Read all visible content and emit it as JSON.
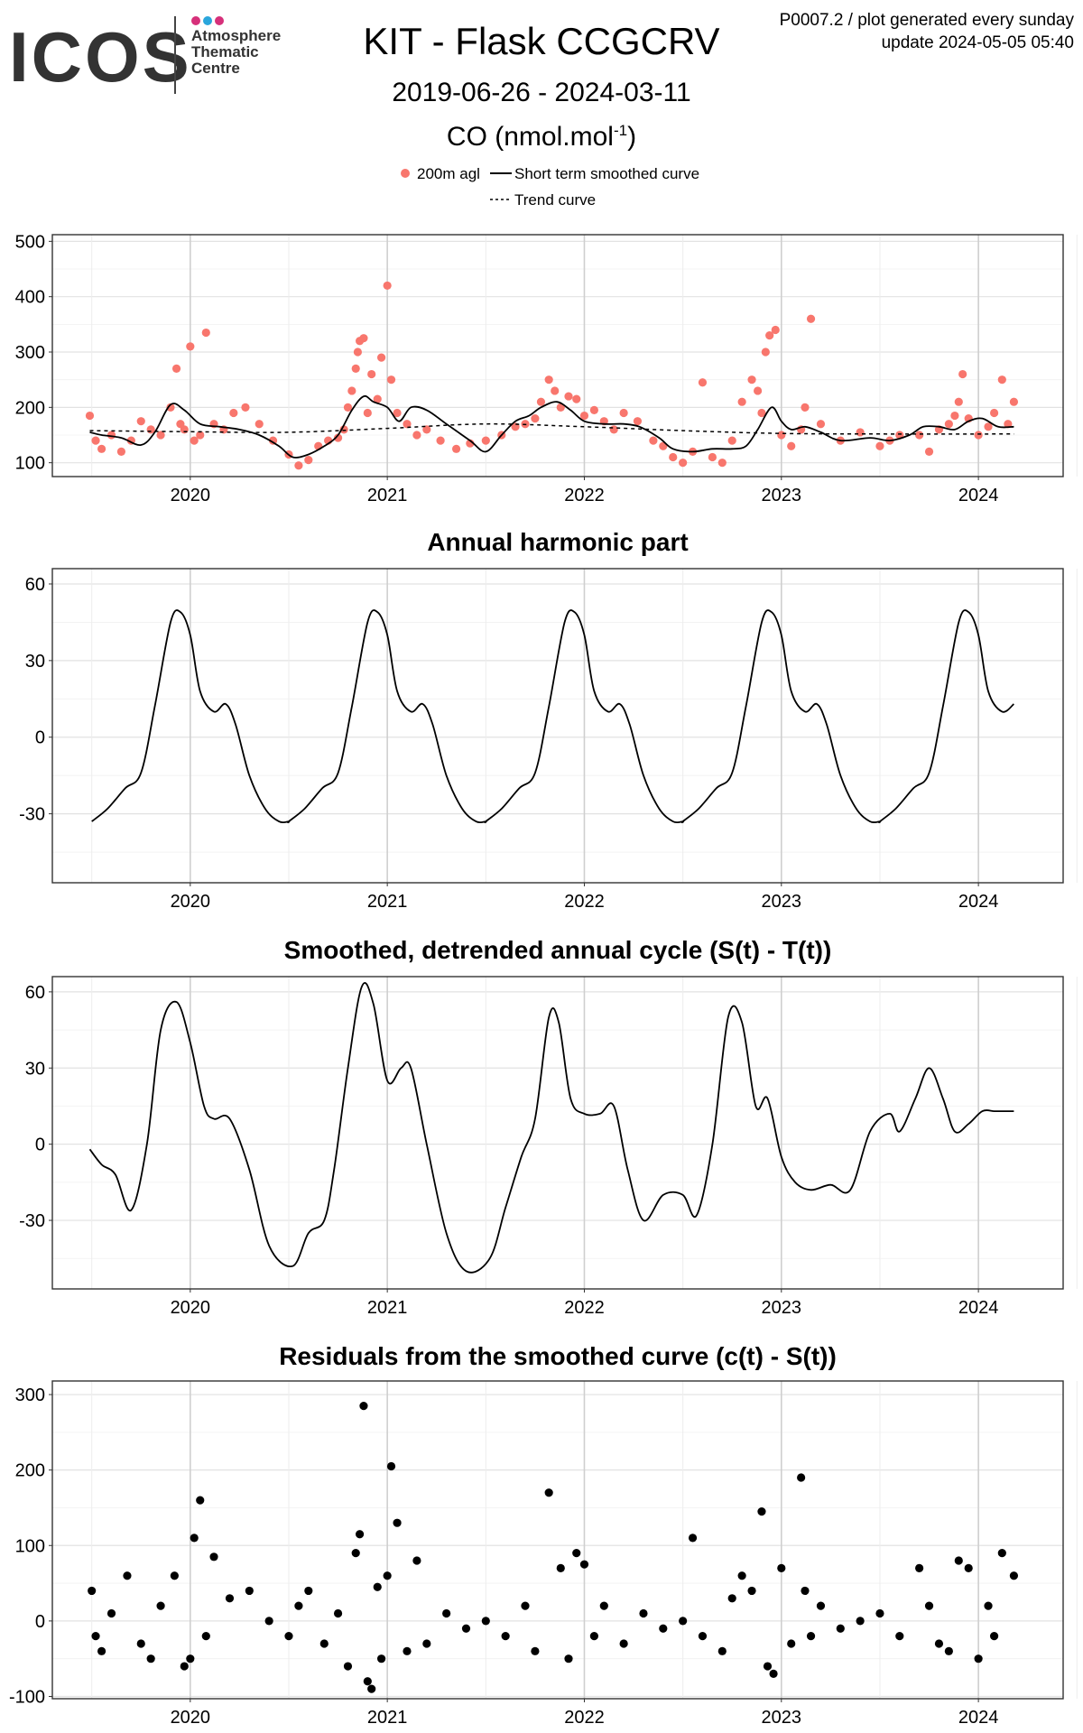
{
  "header": {
    "logo_text": "ICOS",
    "logo_lines": [
      "Atmosphere",
      "Thematic",
      "Centre"
    ],
    "logo_dot_colors": [
      "#d6307a",
      "#2aa6dc",
      "#d6307a"
    ],
    "title": "KIT - Flask CCGCRV",
    "date_range": "2019-06-26 - 2024-03-11",
    "species_main": "CO (nmol.mol",
    "species_sup": "-1",
    "species_close": ")",
    "meta_line1": "P0007.2 / plot generated every sunday",
    "meta_line2": "update  2024-05-05 05:40"
  },
  "legend": {
    "points_label": "200m agl",
    "smooth_label": "Short term smoothed curve",
    "trend_label": "Trend curve",
    "point_color": "#f8766d"
  },
  "chart_data": [
    {
      "type": "scatter",
      "title": "",
      "xlabel": "",
      "ylabel": "",
      "xticks": [
        "2020",
        "2021",
        "2022",
        "2023",
        "2024"
      ],
      "yticks": [
        100,
        200,
        300,
        400,
        500
      ],
      "xlim": [
        2019.3,
        2024.43
      ],
      "ylim": [
        75,
        512
      ],
      "grid": true,
      "series": [
        {
          "name": "200m agl",
          "kind": "points",
          "color": "#f8766d",
          "x": [
            2019.49,
            2019.52,
            2019.55,
            2019.6,
            2019.65,
            2019.7,
            2019.75,
            2019.8,
            2019.85,
            2019.9,
            2019.93,
            2019.95,
            2019.97,
            2020.0,
            2020.02,
            2020.05,
            2020.08,
            2020.12,
            2020.17,
            2020.22,
            2020.28,
            2020.35,
            2020.42,
            2020.5,
            2020.55,
            2020.6,
            2020.65,
            2020.7,
            2020.75,
            2020.78,
            2020.8,
            2020.82,
            2020.84,
            2020.85,
            2020.86,
            2020.88,
            2020.9,
            2020.92,
            2020.95,
            2020.97,
            2021.0,
            2021.02,
            2021.05,
            2021.1,
            2021.15,
            2021.2,
            2021.27,
            2021.35,
            2021.42,
            2021.5,
            2021.58,
            2021.65,
            2021.7,
            2021.75,
            2021.78,
            2021.82,
            2021.85,
            2021.88,
            2021.92,
            2021.96,
            2022.0,
            2022.05,
            2022.1,
            2022.15,
            2022.2,
            2022.27,
            2022.35,
            2022.4,
            2022.45,
            2022.5,
            2022.55,
            2022.6,
            2022.65,
            2022.7,
            2022.75,
            2022.8,
            2022.85,
            2022.88,
            2022.9,
            2022.92,
            2022.94,
            2022.97,
            2023.0,
            2023.05,
            2023.1,
            2023.12,
            2023.15,
            2023.2,
            2023.3,
            2023.4,
            2023.5,
            2023.55,
            2023.6,
            2023.7,
            2023.75,
            2023.8,
            2023.85,
            2023.88,
            2023.9,
            2023.92,
            2023.95,
            2024.0,
            2024.05,
            2024.08,
            2024.12,
            2024.15,
            2024.18
          ],
          "y": [
            185,
            140,
            125,
            150,
            120,
            140,
            175,
            160,
            150,
            200,
            270,
            170,
            160,
            310,
            140,
            150,
            335,
            170,
            160,
            190,
            200,
            170,
            140,
            115,
            95,
            105,
            130,
            140,
            145,
            160,
            200,
            230,
            270,
            300,
            320,
            325,
            190,
            260,
            215,
            290,
            420,
            250,
            190,
            170,
            150,
            160,
            140,
            125,
            135,
            140,
            150,
            165,
            170,
            180,
            210,
            250,
            230,
            200,
            220,
            215,
            185,
            195,
            175,
            160,
            190,
            175,
            140,
            130,
            110,
            100,
            120,
            245,
            110,
            100,
            140,
            210,
            250,
            230,
            190,
            300,
            330,
            340,
            150,
            130,
            160,
            200,
            360,
            170,
            140,
            155,
            130,
            140,
            150,
            150,
            120,
            160,
            170,
            185,
            210,
            260,
            180,
            150,
            165,
            190,
            250,
            170,
            210
          ]
        },
        {
          "name": "Short term smoothed curve",
          "kind": "line",
          "x": [
            2019.49,
            2019.55,
            2019.65,
            2019.75,
            2019.82,
            2019.9,
            2019.97,
            2020.05,
            2020.15,
            2020.25,
            2020.35,
            2020.45,
            2020.52,
            2020.6,
            2020.68,
            2020.75,
            2020.82,
            2020.88,
            2020.93,
            2021.0,
            2021.06,
            2021.12,
            2021.2,
            2021.3,
            2021.42,
            2021.5,
            2021.58,
            2021.65,
            2021.72,
            2021.78,
            2021.86,
            2021.93,
            2022.0,
            2022.1,
            2022.2,
            2022.28,
            2022.38,
            2022.45,
            2022.55,
            2022.65,
            2022.75,
            2022.82,
            2022.88,
            2022.95,
            2023.0,
            2023.05,
            2023.12,
            2023.2,
            2023.3,
            2023.45,
            2023.55,
            2023.65,
            2023.72,
            2023.8,
            2023.88,
            2023.95,
            2024.02,
            2024.1,
            2024.18
          ],
          "y": [
            155,
            150,
            145,
            132,
            155,
            205,
            195,
            170,
            165,
            160,
            150,
            130,
            110,
            115,
            130,
            150,
            195,
            220,
            210,
            200,
            175,
            200,
            195,
            170,
            140,
            120,
            150,
            175,
            185,
            200,
            210,
            195,
            175,
            170,
            170,
            165,
            145,
            125,
            120,
            125,
            125,
            130,
            160,
            200,
            175,
            160,
            165,
            155,
            140,
            145,
            140,
            150,
            165,
            165,
            160,
            175,
            180,
            165,
            165
          ]
        },
        {
          "name": "Trend curve",
          "kind": "dashed",
          "x": [
            2019.49,
            2020.0,
            2020.5,
            2021.0,
            2021.5,
            2022.0,
            2022.5,
            2023.0,
            2023.5,
            2024.18
          ],
          "y": [
            158,
            156,
            155,
            162,
            170,
            165,
            158,
            153,
            152,
            152
          ]
        }
      ]
    },
    {
      "type": "line",
      "title": "Annual harmonic part",
      "xlabel": "",
      "ylabel": "",
      "xticks": [
        "2020",
        "2021",
        "2022",
        "2023",
        "2024"
      ],
      "yticks": [
        -30,
        0,
        30,
        60
      ],
      "xlim": [
        2019.3,
        2024.43
      ],
      "ylim": [
        -57,
        66
      ],
      "grid": true,
      "series": [
        {
          "name": "",
          "kind": "line",
          "x": [
            0.5,
            0.58,
            0.67,
            0.75,
            0.82,
            0.9,
            0.95,
            1.0,
            1.05,
            1.12,
            1.18,
            1.23,
            1.3,
            1.38,
            1.45,
            1.5
          ],
          "y": [
            -33,
            -28,
            -20,
            -14,
            12,
            45,
            49,
            40,
            18,
            10,
            13,
            5,
            -15,
            -28,
            -33,
            -33
          ],
          "period": 1.0,
          "x_start": 2019.49,
          "x_end": 2024.18
        }
      ]
    },
    {
      "type": "line",
      "title": "Smoothed, detrended annual cycle (S(t) - T(t))",
      "xlabel": "",
      "ylabel": "",
      "xticks": [
        "2020",
        "2021",
        "2022",
        "2023",
        "2024"
      ],
      "yticks": [
        -30,
        0,
        30,
        60
      ],
      "xlim": [
        2019.3,
        2024.43
      ],
      "ylim": [
        -57,
        66
      ],
      "grid": true,
      "series": [
        {
          "name": "",
          "kind": "line",
          "x": [
            2019.49,
            2019.55,
            2019.62,
            2019.7,
            2019.78,
            2019.85,
            2019.93,
            2020.0,
            2020.07,
            2020.12,
            2020.2,
            2020.3,
            2020.4,
            2020.52,
            2020.6,
            2020.68,
            2020.73,
            2020.8,
            2020.87,
            2020.93,
            2021.0,
            2021.07,
            2021.12,
            2021.2,
            2021.3,
            2021.4,
            2021.52,
            2021.6,
            2021.68,
            2021.75,
            2021.82,
            2021.87,
            2021.93,
            2022.0,
            2022.08,
            2022.15,
            2022.22,
            2022.3,
            2022.4,
            2022.5,
            2022.57,
            2022.65,
            2022.73,
            2022.8,
            2022.87,
            2022.93,
            2023.0,
            2023.07,
            2023.15,
            2023.25,
            2023.35,
            2023.45,
            2023.55,
            2023.6,
            2023.68,
            2023.75,
            2023.82,
            2023.88,
            2023.95,
            2024.02,
            2024.08,
            2024.12,
            2024.18
          ],
          "y": [
            -2,
            -8,
            -12,
            -26,
            0,
            45,
            56,
            40,
            15,
            10,
            10,
            -10,
            -40,
            -48,
            -35,
            -30,
            -10,
            30,
            62,
            55,
            25,
            30,
            30,
            0,
            -35,
            -50,
            -45,
            -25,
            -5,
            10,
            50,
            48,
            18,
            12,
            12,
            15,
            -10,
            -30,
            -20,
            -20,
            -28,
            0,
            50,
            48,
            15,
            18,
            -5,
            -15,
            -18,
            -16,
            -18,
            5,
            12,
            5,
            18,
            30,
            18,
            5,
            8,
            13,
            13,
            13,
            13
          ]
        }
      ]
    },
    {
      "type": "scatter",
      "title": "Residuals from the smoothed curve (c(t) - S(t))",
      "xlabel": "",
      "ylabel": "",
      "xticks": [
        "2020",
        "2021",
        "2022",
        "2023",
        "2024"
      ],
      "yticks": [
        -100,
        0,
        100,
        200,
        300
      ],
      "xlim": [
        2019.3,
        2024.43
      ],
      "ylim": [
        -103,
        318
      ],
      "grid": true,
      "series": [
        {
          "name": "",
          "kind": "points",
          "x": [
            2019.5,
            2019.52,
            2019.55,
            2019.6,
            2019.68,
            2019.75,
            2019.8,
            2019.85,
            2019.92,
            2019.97,
            2020.0,
            2020.02,
            2020.05,
            2020.08,
            2020.12,
            2020.2,
            2020.3,
            2020.4,
            2020.5,
            2020.55,
            2020.6,
            2020.68,
            2020.75,
            2020.8,
            2020.84,
            2020.86,
            2020.88,
            2020.9,
            2020.92,
            2020.95,
            2020.97,
            2021.0,
            2021.02,
            2021.05,
            2021.1,
            2021.15,
            2021.2,
            2021.3,
            2021.4,
            2021.5,
            2021.6,
            2021.7,
            2021.75,
            2021.82,
            2021.88,
            2021.92,
            2021.96,
            2022.0,
            2022.05,
            2022.1,
            2022.2,
            2022.3,
            2022.4,
            2022.5,
            2022.55,
            2022.6,
            2022.7,
            2022.75,
            2022.8,
            2022.85,
            2022.9,
            2022.93,
            2022.96,
            2023.0,
            2023.05,
            2023.1,
            2023.12,
            2023.15,
            2023.2,
            2023.3,
            2023.4,
            2023.5,
            2023.6,
            2023.7,
            2023.75,
            2023.8,
            2023.85,
            2023.9,
            2023.95,
            2024.0,
            2024.05,
            2024.08,
            2024.12,
            2024.18
          ],
          "y": [
            40,
            -20,
            -40,
            10,
            60,
            -30,
            -50,
            20,
            60,
            -60,
            -50,
            110,
            160,
            -20,
            85,
            30,
            40,
            0,
            -20,
            20,
            40,
            -30,
            10,
            -60,
            90,
            115,
            285,
            -80,
            -90,
            45,
            -50,
            60,
            205,
            130,
            -40,
            80,
            -30,
            10,
            -10,
            0,
            -20,
            20,
            -40,
            170,
            70,
            -50,
            90,
            75,
            -20,
            20,
            -30,
            10,
            -10,
            0,
            110,
            -20,
            -40,
            30,
            60,
            40,
            145,
            -60,
            -70,
            70,
            -30,
            190,
            40,
            -20,
            20,
            -10,
            0,
            10,
            -20,
            70,
            20,
            -30,
            -40,
            80,
            70,
            -50,
            20,
            -20,
            90,
            60
          ]
        }
      ]
    }
  ]
}
